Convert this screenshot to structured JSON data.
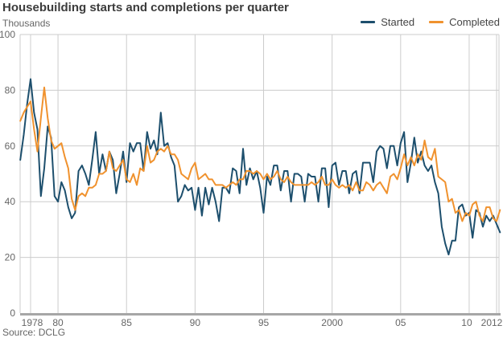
{
  "header": {
    "title": "Housebuilding starts and completions per quarter",
    "unit": "Thousands"
  },
  "source": "Source: DCLG",
  "chart_data": {
    "type": "line",
    "title": "Housebuilding starts and completions per quarter",
    "xlabel": "",
    "ylabel": "Thousands",
    "grid": true,
    "legend_position": "top-right",
    "ylim": [
      0,
      100
    ],
    "y_ticks": [
      0,
      20,
      40,
      60,
      80,
      100
    ],
    "x_ticks": [
      {
        "label": "1978",
        "year": 1978,
        "dx": 2
      },
      {
        "label": "80",
        "year": 1980,
        "dx": 0
      },
      {
        "label": "85",
        "year": 1985,
        "dx": 0
      },
      {
        "label": "90",
        "year": 1990,
        "dx": 0
      },
      {
        "label": "95",
        "year": 1995,
        "dx": 0
      },
      {
        "label": "2000",
        "year": 2000,
        "dx": 0
      },
      {
        "label": "05",
        "year": 2005,
        "dx": 0
      },
      {
        "label": "10",
        "year": 2010,
        "dx": -3
      },
      {
        "label": "2012",
        "year": 2012,
        "dx": -6
      }
    ],
    "x_start": 1977.25,
    "x_step": 0.25,
    "x_unit": "year (quarterly)",
    "series": [
      {
        "name": "Started",
        "color": "#1d4f6d",
        "values": [
          55,
          64,
          75,
          84,
          72,
          66,
          42,
          52,
          67,
          63,
          42,
          40,
          47,
          44,
          38,
          34,
          36,
          51,
          53,
          50,
          46,
          55,
          65,
          50,
          57,
          51,
          58,
          55,
          43,
          50,
          58,
          47,
          61,
          58,
          61,
          61,
          51,
          65,
          59,
          62,
          57,
          72,
          60,
          61,
          56,
          53,
          40,
          42,
          46,
          44,
          45,
          37,
          45,
          35,
          45,
          39,
          45,
          40,
          33,
          45,
          45,
          43,
          52,
          51,
          43,
          59,
          46,
          52,
          48,
          51,
          45,
          36,
          49,
          46,
          53,
          53,
          44,
          51,
          51,
          40,
          50,
          50,
          49,
          40,
          50,
          49,
          49,
          40,
          52,
          52,
          38,
          53,
          54,
          46,
          51,
          51,
          43,
          50,
          51,
          43,
          54,
          54,
          54,
          47,
          58,
          60,
          59,
          52,
          60,
          60,
          53,
          61,
          65,
          47,
          54,
          63,
          54,
          58,
          53,
          51,
          53,
          47,
          43,
          31,
          25,
          21,
          26,
          26,
          38,
          39,
          35,
          36,
          27,
          37,
          36,
          31,
          35,
          33,
          35,
          32,
          29
        ]
      },
      {
        "name": "Completed",
        "color": "#f0922e",
        "values": [
          69,
          72,
          74,
          76,
          66,
          58,
          70,
          81,
          70,
          62,
          59,
          60,
          61,
          56,
          52,
          41,
          37,
          42,
          43,
          42,
          45,
          45,
          46,
          50,
          50,
          51,
          58,
          52,
          51,
          53,
          55,
          48,
          47,
          50,
          46,
          52,
          51,
          60,
          54,
          55,
          58,
          59,
          58,
          60,
          57,
          57,
          55,
          50,
          49,
          48,
          52,
          54,
          48,
          49,
          50,
          48,
          48,
          46,
          46,
          46,
          45,
          46,
          47,
          46,
          48,
          48,
          51,
          51,
          50,
          51,
          50,
          48,
          50,
          48,
          49,
          51,
          48,
          47,
          49,
          47,
          46,
          46,
          46,
          46,
          46,
          47,
          46,
          47,
          49,
          46,
          46,
          48,
          46,
          45,
          46,
          45,
          46,
          44,
          47,
          44,
          44,
          47,
          46,
          44,
          46,
          47,
          45,
          43,
          49,
          50,
          48,
          52,
          57,
          53,
          56,
          53,
          57,
          55,
          62,
          56,
          55,
          59,
          49,
          48,
          47,
          40,
          41,
          36,
          37,
          33,
          36,
          35,
          39,
          40,
          35,
          33,
          38,
          38,
          34,
          33,
          37
        ]
      }
    ]
  }
}
